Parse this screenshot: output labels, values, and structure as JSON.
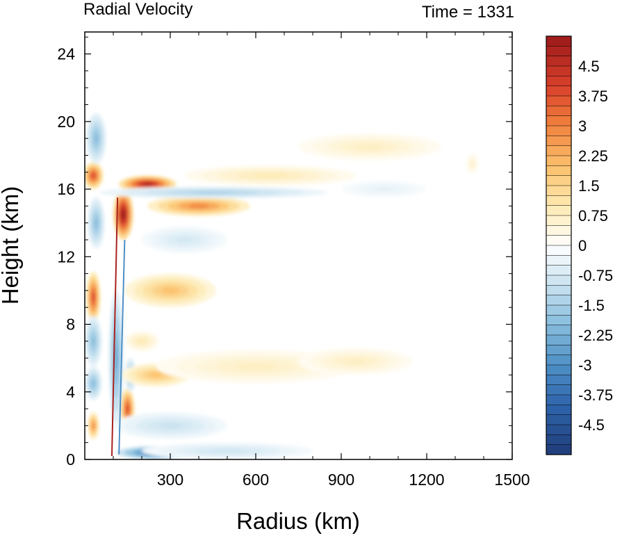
{
  "chart_data": {
    "type": "heatmap",
    "title": "Radial Velocity",
    "right_title": "Time = 1331",
    "xlabel": "Radius (km)",
    "ylabel": "Height (km)",
    "xlim": [
      0,
      1500
    ],
    "ylim": [
      0,
      25.3
    ],
    "x_ticks": [
      300,
      600,
      900,
      1200,
      1500
    ],
    "y_ticks": [
      0,
      4,
      8,
      12,
      16,
      20,
      24
    ],
    "colorbar": {
      "min": -5.25,
      "max": 5.25,
      "step": 0.25,
      "labels": [
        "4.5",
        "3.75",
        "3",
        "2.25",
        "1.5",
        "0.75",
        "0",
        "-0.75",
        "-1.5",
        "-2.25",
        "-3",
        "-3.75",
        "-4.5"
      ],
      "label_values": [
        4.5,
        3.75,
        3,
        2.25,
        1.5,
        0.75,
        0,
        -0.75,
        -1.5,
        -2.25,
        -3,
        -3.75,
        -4.5
      ],
      "stops": [
        {
          "v": -5.25,
          "c": "#1f3c78"
        },
        {
          "v": -4.0,
          "c": "#2f65ac"
        },
        {
          "v": -3.0,
          "c": "#4e8fc5"
        },
        {
          "v": -2.0,
          "c": "#86bcdc"
        },
        {
          "v": -1.0,
          "c": "#c8e2f0"
        },
        {
          "v": 0.0,
          "c": "#ffffff"
        },
        {
          "v": 1.0,
          "c": "#fdeab2"
        },
        {
          "v": 2.0,
          "c": "#fcc06b"
        },
        {
          "v": 3.0,
          "c": "#f1833f"
        },
        {
          "v": 4.0,
          "c": "#d9402a"
        },
        {
          "v": 5.25,
          "c": "#9b1a1c"
        }
      ]
    },
    "features": [
      {
        "r": 30,
        "z": 16.8,
        "sr": 35,
        "sz": 0.8,
        "v": 4.0
      },
      {
        "r": 135,
        "z": 14.5,
        "sr": 35,
        "sz": 1.5,
        "v": 5.5
      },
      {
        "r": 220,
        "z": 16.3,
        "sr": 100,
        "sz": 0.5,
        "v": 5.0
      },
      {
        "r": 400,
        "z": 15.0,
        "sr": 180,
        "sz": 0.6,
        "v": 3.0
      },
      {
        "r": 650,
        "z": 16.8,
        "sr": 300,
        "sz": 0.6,
        "v": 1.0
      },
      {
        "r": 1000,
        "z": 18.5,
        "sr": 250,
        "sz": 0.8,
        "v": 0.8
      },
      {
        "r": 450,
        "z": 15.8,
        "sr": 400,
        "sz": 0.35,
        "v": -1.5
      },
      {
        "r": 30,
        "z": 9.6,
        "sr": 25,
        "sz": 1.5,
        "v": 4.0
      },
      {
        "r": 30,
        "z": 7.0,
        "sr": 30,
        "sz": 1.5,
        "v": -2.0
      },
      {
        "r": 30,
        "z": 4.5,
        "sr": 30,
        "sz": 1.0,
        "v": -2.0
      },
      {
        "r": 30,
        "z": 2.0,
        "sr": 20,
        "sz": 0.8,
        "v": 3.0
      },
      {
        "r": 40,
        "z": 19.0,
        "sr": 35,
        "sz": 1.5,
        "v": -2.0
      },
      {
        "r": 40,
        "z": 14.0,
        "sr": 30,
        "sz": 1.5,
        "v": -2.0
      },
      {
        "r": 110,
        "z": 6.0,
        "sr": 25,
        "sz": 4.0,
        "v": -2.5
      },
      {
        "r": 150,
        "z": 3.0,
        "sr": 25,
        "sz": 1.2,
        "v": 4.0
      },
      {
        "r": 160,
        "z": 5.0,
        "sr": 20,
        "sz": 1.0,
        "v": -2.0
      },
      {
        "r": 300,
        "z": 10.0,
        "sr": 160,
        "sz": 1.0,
        "v": 2.0
      },
      {
        "r": 250,
        "z": 5.0,
        "sr": 120,
        "sz": 0.7,
        "v": 2.0
      },
      {
        "r": 600,
        "z": 5.5,
        "sr": 350,
        "sz": 1.0,
        "v": 0.8
      },
      {
        "r": 950,
        "z": 5.8,
        "sr": 200,
        "sz": 0.8,
        "v": 0.8
      },
      {
        "r": 260,
        "z": 0.4,
        "sr": 150,
        "sz": 0.4,
        "v": -4.0
      },
      {
        "r": 500,
        "z": 0.5,
        "sr": 300,
        "sz": 0.5,
        "v": -0.9
      },
      {
        "r": 300,
        "z": 2.0,
        "sr": 200,
        "sz": 0.8,
        "v": -1.0
      },
      {
        "r": 200,
        "z": 7.0,
        "sr": 60,
        "sz": 0.6,
        "v": 1.0
      },
      {
        "r": 350,
        "z": 13.0,
        "sr": 150,
        "sz": 0.8,
        "v": -0.8
      },
      {
        "r": 1050,
        "z": 16.0,
        "sr": 150,
        "sz": 0.5,
        "v": -0.5
      },
      {
        "r": 1360,
        "z": 17.5,
        "sr": 20,
        "sz": 0.6,
        "v": 0.7
      }
    ]
  }
}
